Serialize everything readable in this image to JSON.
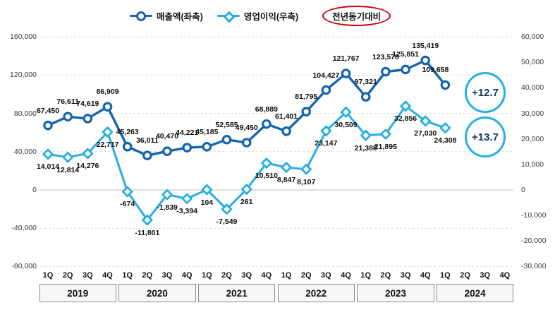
{
  "legend": {
    "series1": "매출액(좌축)",
    "series2": "영업이익(우축)",
    "yoy_label": "전년동기대비"
  },
  "colors": {
    "revenue": "#1565ae",
    "profit": "#27aee3",
    "grid": "#d9d9d9",
    "zero_line": "#bfbfbf",
    "badge_border": "#27aee3",
    "badge_text": "#17365d",
    "oval_red": "#cc0000"
  },
  "chart_data": {
    "type": "line",
    "title": "",
    "x_labels_quarters": [
      "1Q",
      "2Q",
      "3Q",
      "4Q",
      "1Q",
      "2Q",
      "3Q",
      "4Q",
      "1Q",
      "2Q",
      "3Q",
      "4Q",
      "1Q",
      "2Q",
      "3Q",
      "4Q",
      "1Q",
      "2Q",
      "3Q",
      "4Q",
      "1Q",
      "2Q",
      "3Q",
      "4Q"
    ],
    "x_labels_years": [
      "2019",
      "2020",
      "2021",
      "2022",
      "2023",
      "2024"
    ],
    "series": [
      {
        "name": "매출액(좌축)",
        "axis": "left",
        "marker": "circle",
        "color": "#1565ae",
        "label_side": "above",
        "values": [
          67450,
          76611,
          74619,
          86909,
          45263,
          36011,
          40470,
          44221,
          45185,
          52585,
          49450,
          68889,
          61401,
          81795,
          104427,
          121767,
          97321,
          123578,
          125851,
          135419,
          109658
        ]
      },
      {
        "name": "영업이익(우축)",
        "axis": "right",
        "marker": "diamond",
        "color": "#27aee3",
        "label_side": "below",
        "values": [
          14014,
          12814,
          14276,
          22717,
          -674,
          -11801,
          -1839,
          -3394,
          104,
          -7549,
          261,
          10510,
          8847,
          8107,
          23147,
          30509,
          21388,
          21895,
          32856,
          27030,
          24308
        ]
      }
    ],
    "left_axis": {
      "min": -80000,
      "max": 160000,
      "step": 40000,
      "ticks": [
        "160,000",
        "120,000",
        "80,000",
        "40,000",
        "0",
        "-40,000",
        "-80,000"
      ]
    },
    "right_axis": {
      "min": -30000,
      "max": 60000,
      "step": 10000,
      "ticks": [
        "60,000",
        "50,000",
        "40,000",
        "30,000",
        "20,000",
        "10,000",
        "0",
        "-10,000",
        "-20,000",
        "-30,000"
      ]
    },
    "grid": "horizontal-dashed",
    "legend_position": "top",
    "annotations": [
      {
        "text": "+12.7",
        "series": "매출액(좌축)"
      },
      {
        "text": "+13.7",
        "series": "영업이익(우축)"
      }
    ]
  }
}
